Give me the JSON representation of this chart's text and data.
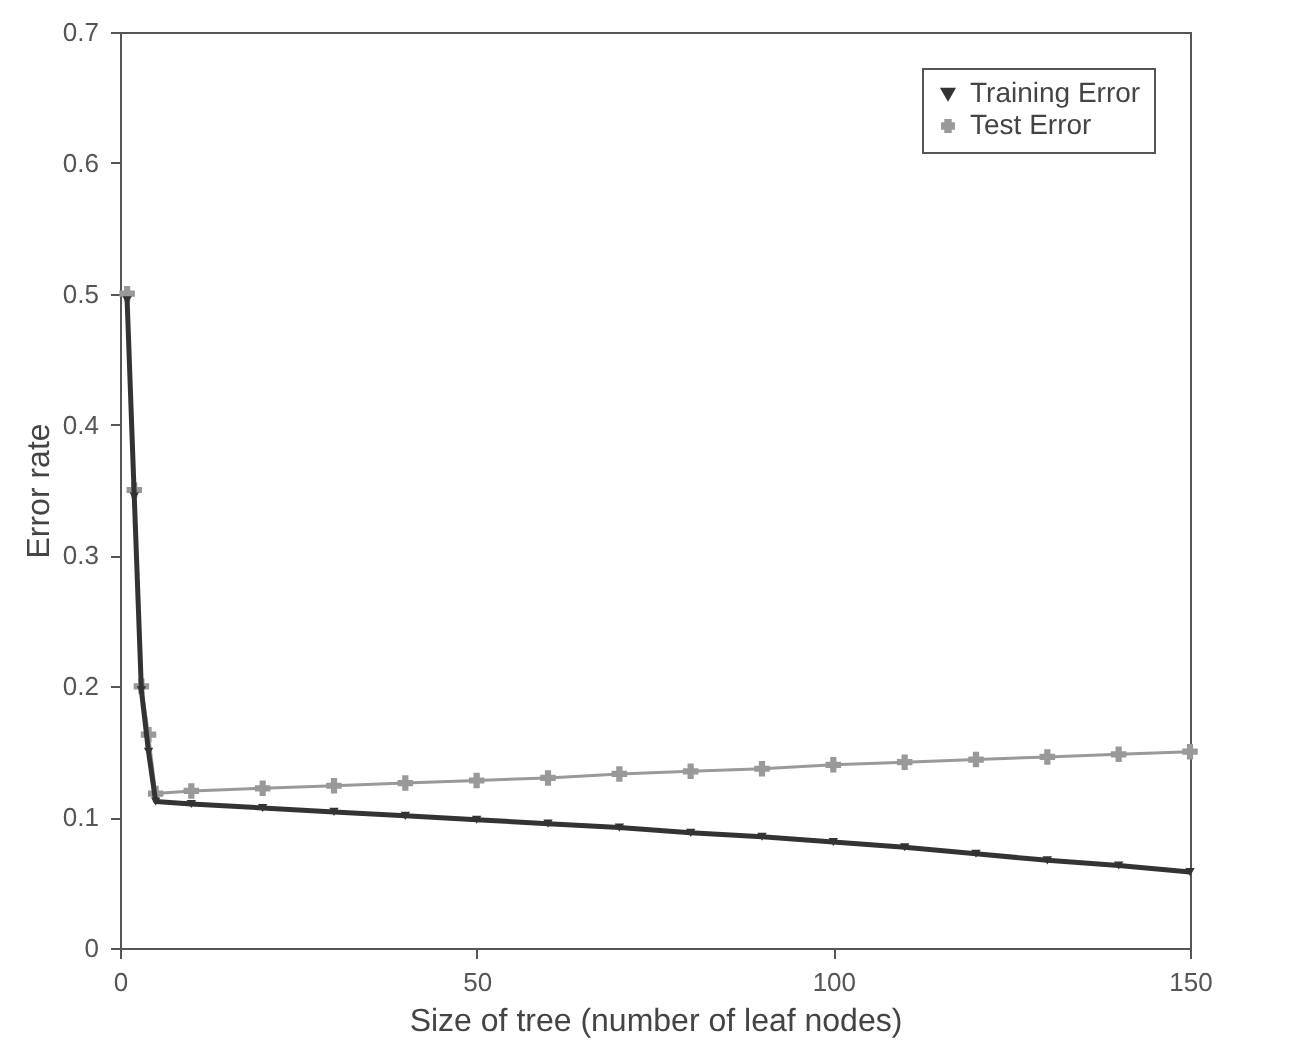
{
  "chart_data": {
    "type": "line",
    "xlabel": "Size of tree (number of leaf nodes)",
    "ylabel": "Error rate",
    "x": [
      1,
      2,
      3,
      4,
      5,
      10,
      20,
      30,
      40,
      50,
      60,
      70,
      80,
      90,
      100,
      110,
      120,
      130,
      140,
      150
    ],
    "series": [
      {
        "name": "Training Error",
        "color": "#333333",
        "marker": "triangle-down",
        "values": [
          0.495,
          0.345,
          0.197,
          0.15,
          0.112,
          0.11,
          0.107,
          0.104,
          0.101,
          0.098,
          0.095,
          0.092,
          0.088,
          0.085,
          0.081,
          0.077,
          0.072,
          0.067,
          0.063,
          0.058
        ]
      },
      {
        "name": "Test Error",
        "color": "#999999",
        "marker": "cross",
        "values": [
          0.5,
          0.35,
          0.2,
          0.163,
          0.118,
          0.12,
          0.122,
          0.124,
          0.126,
          0.128,
          0.13,
          0.133,
          0.135,
          0.137,
          0.14,
          0.142,
          0.144,
          0.146,
          0.148,
          0.15
        ]
      }
    ],
    "xlim": [
      0,
      150
    ],
    "xticks": [
      0,
      50,
      100,
      150
    ],
    "ylim": [
      0,
      0.7
    ],
    "yticks": [
      0,
      0.1,
      0.2,
      0.3,
      0.4,
      0.5,
      0.6,
      0.7
    ],
    "grid": false,
    "legend": "top right"
  }
}
